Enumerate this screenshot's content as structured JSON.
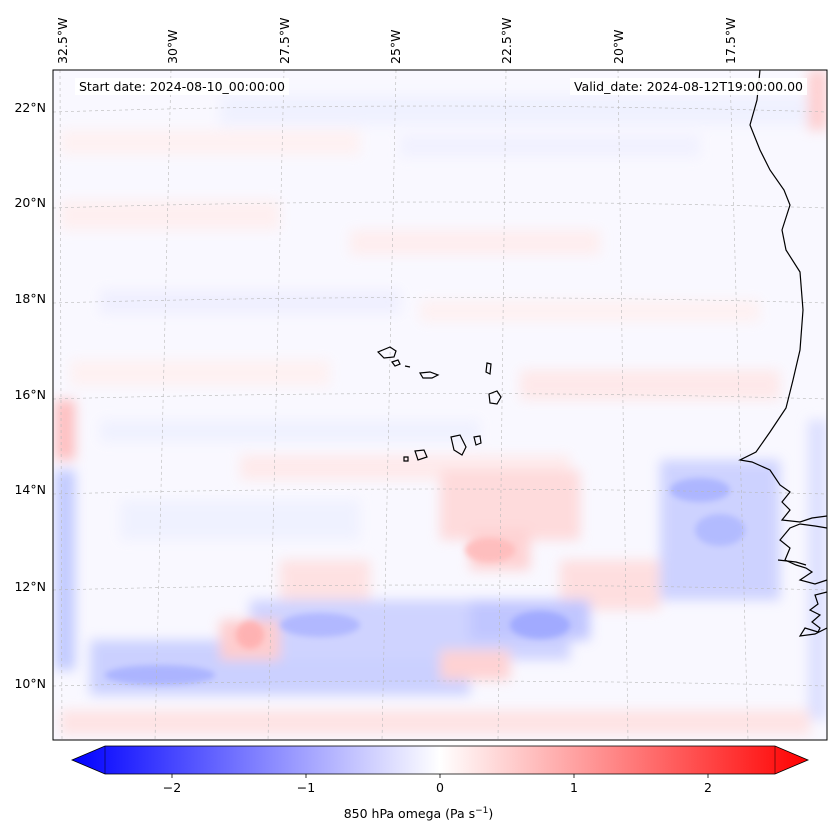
{
  "map": {
    "start_date": "Start date: 2024-08-10_00:00:00",
    "valid_date": "Valid_date: 2024-08-12T19:00:00.00",
    "lon_labels": [
      "32.5°W",
      "30°W",
      "27.5°W",
      "25°W",
      "22.5°W",
      "20°W",
      "17.5°W"
    ],
    "lat_labels": [
      "22°N",
      "20°N",
      "18°N",
      "16°N",
      "14°N",
      "12°N",
      "10°N"
    ],
    "extent": {
      "lon_min": -33.0,
      "lon_max": -16.0,
      "lat_min": 9.0,
      "lat_max": 22.8
    },
    "features": [
      "Cape Verde islands",
      "West African coastline (Senegal, Mauritania)"
    ]
  },
  "colorbar": {
    "title_main": "850 hPa omega (Pa s",
    "title_exp": "−1",
    "title_end": ")",
    "tick_labels": [
      "−2",
      "−1",
      "0",
      "1",
      "2"
    ],
    "ticks": [
      -2,
      -1,
      0,
      1,
      2
    ],
    "range": [
      -2.5,
      2.5
    ],
    "colors": {
      "low": "#0000ff",
      "mid": "#ffffff",
      "high": "#ff0000"
    }
  },
  "colors": {
    "coast": "#000000",
    "grid": "#b0b0b0"
  }
}
